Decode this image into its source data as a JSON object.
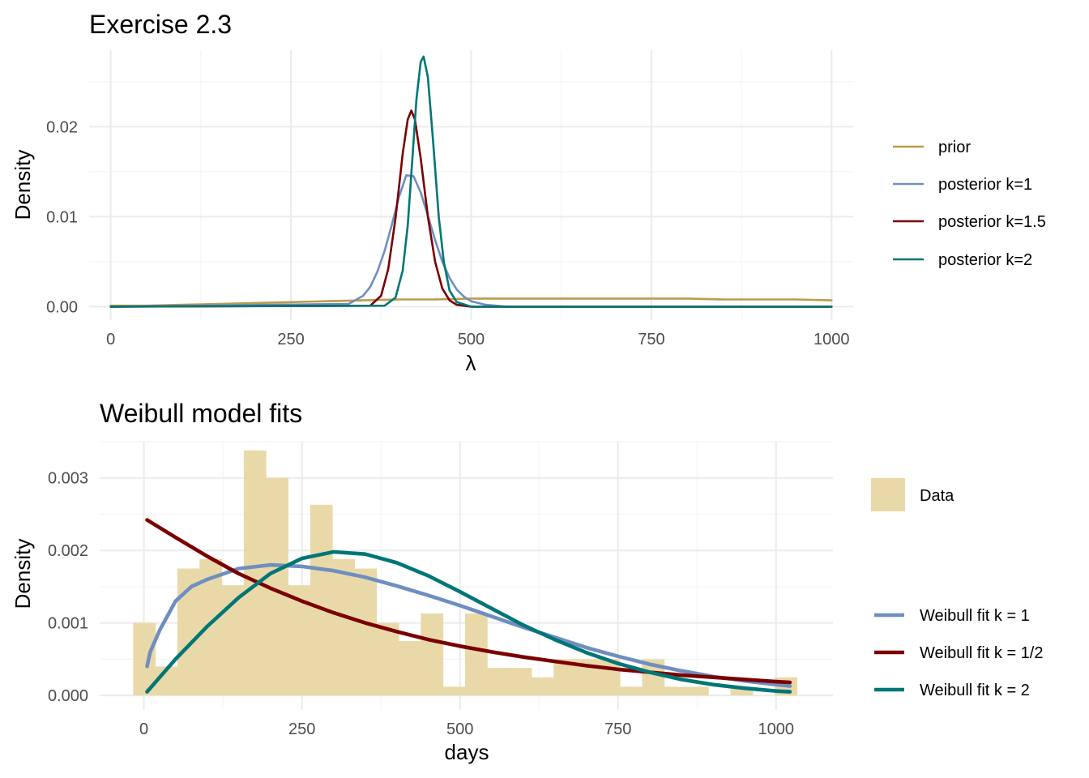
{
  "chart_data": [
    {
      "type": "line",
      "title": "Exercise 2.3",
      "xlabel": "λ",
      "ylabel": "Density",
      "xlim": [
        -30,
        1030
      ],
      "ylim": [
        -0.0015,
        0.0285
      ],
      "x_ticks": [
        0,
        250,
        500,
        750,
        1000
      ],
      "x_tick_labels": [
        "0",
        "250",
        "500",
        "750",
        "1000"
      ],
      "y_ticks": [
        0,
        0.01,
        0.02
      ],
      "y_tick_labels": [
        "0.00",
        "0.01",
        "0.02"
      ],
      "grid": true,
      "legend_position": "right",
      "series": [
        {
          "name": "prior",
          "color": "#BC9B4C",
          "x": [
            0,
            50,
            100,
            150,
            200,
            250,
            300,
            350,
            400,
            450,
            500,
            550,
            600,
            650,
            700,
            750,
            800,
            850,
            900,
            950,
            1000
          ],
          "y": [
            0.0001,
            0.0001,
            0.0002,
            0.0003,
            0.0004,
            0.0005,
            0.0006,
            0.0007,
            0.0008,
            0.0008,
            0.0009,
            0.0009,
            0.0009,
            0.0009,
            0.0009,
            0.0009,
            0.0009,
            0.0008,
            0.0008,
            0.0008,
            0.0007
          ]
        },
        {
          "name": "posterior k=1",
          "color": "#6F8EC0",
          "x": [
            0,
            330,
            350,
            360,
            370,
            380,
            390,
            400,
            410,
            420,
            430,
            440,
            450,
            460,
            470,
            480,
            490,
            500,
            520,
            550,
            1000
          ],
          "y": [
            0,
            0.0003,
            0.0012,
            0.0022,
            0.0039,
            0.0062,
            0.0091,
            0.0122,
            0.0146,
            0.0145,
            0.0127,
            0.0101,
            0.0074,
            0.005,
            0.0032,
            0.0019,
            0.0011,
            0.0006,
            0.0002,
            0,
            0
          ]
        },
        {
          "name": "posterior k=1.5",
          "color": "#7A0000",
          "x": [
            0,
            360,
            375,
            385,
            395,
            405,
            412,
            417,
            422,
            430,
            440,
            450,
            460,
            470,
            480,
            500,
            1000
          ],
          "y": [
            0,
            0.0001,
            0.0012,
            0.0042,
            0.0098,
            0.017,
            0.0208,
            0.0218,
            0.0208,
            0.0165,
            0.01,
            0.005,
            0.002,
            0.0007,
            0.0002,
            0,
            0
          ]
        },
        {
          "name": "posterior k=2",
          "color": "#007676",
          "x": [
            0,
            380,
            395,
            405,
            412,
            418,
            424,
            430,
            434,
            440,
            447,
            455,
            462,
            470,
            480,
            500,
            1000
          ],
          "y": [
            0,
            0.0001,
            0.001,
            0.004,
            0.009,
            0.016,
            0.023,
            0.0272,
            0.0278,
            0.0255,
            0.0185,
            0.01,
            0.005,
            0.0018,
            0.0005,
            0,
            0
          ]
        }
      ]
    },
    {
      "type": "bar",
      "title": "Weibull model fits",
      "xlabel": "days",
      "ylabel": "Density",
      "xlim": [
        -70,
        1090
      ],
      "ylim": [
        -0.0002,
        0.0035
      ],
      "x_ticks": [
        0,
        250,
        500,
        750,
        1000
      ],
      "x_tick_labels": [
        "0",
        "250",
        "500",
        "750",
        "1000"
      ],
      "y_ticks": [
        0,
        0.001,
        0.002,
        0.003
      ],
      "y_tick_labels": [
        "0.000",
        "0.001",
        "0.002",
        "0.003"
      ],
      "grid": true,
      "legend_position": "right",
      "histogram": {
        "name": "Data",
        "color": "#EAD9A8",
        "bin_width": 35,
        "bins_left": [
          -17,
          18,
          53,
          88,
          123,
          158,
          193,
          228,
          263,
          298,
          333,
          368,
          403,
          438,
          473,
          508,
          543,
          578,
          613,
          648,
          683,
          718,
          753,
          788,
          823,
          858,
          893,
          928,
          963,
          998
        ],
        "values": [
          0.001,
          0.0004,
          0.00175,
          0.00188,
          0.00152,
          0.00338,
          0.003,
          0.00152,
          0.00263,
          0.00188,
          0.00175,
          0.001,
          0.00075,
          0.00113,
          0.00012,
          0.00113,
          0.00038,
          0.00038,
          0.00025,
          0.0005,
          0.0005,
          0.0005,
          0.00012,
          0.0005,
          0.00012,
          0.00012,
          0,
          0.00012,
          0,
          0.00025
        ]
      },
      "series": [
        {
          "name": "Weibull fit k = 1",
          "color": "#6F8EC0",
          "x": [
            5,
            10,
            25,
            50,
            75,
            100,
            150,
            200,
            250,
            300,
            350,
            400,
            450,
            500,
            550,
            600,
            650,
            700,
            750,
            800,
            850,
            900,
            950,
            1000,
            1022
          ],
          "y": [
            0.0004,
            0.0006,
            0.0009,
            0.0013,
            0.0015,
            0.0016,
            0.00175,
            0.0018,
            0.00178,
            0.00172,
            0.00163,
            0.00151,
            0.00138,
            0.00124,
            0.00109,
            0.00094,
            0.0008,
            0.00066,
            0.00054,
            0.00043,
            0.00034,
            0.00026,
            0.0002,
            0.00015,
            0.00013
          ]
        },
        {
          "name": "Weibull fit k = 1/2",
          "color": "#7A0000",
          "x": [
            5,
            50,
            100,
            150,
            200,
            250,
            300,
            350,
            400,
            450,
            500,
            550,
            600,
            650,
            700,
            750,
            800,
            850,
            900,
            950,
            1000,
            1022
          ],
          "y": [
            0.00242,
            0.00218,
            0.00192,
            0.00168,
            0.00148,
            0.0013,
            0.00114,
            0.001,
            0.00088,
            0.00077,
            0.00068,
            0.0006,
            0.00053,
            0.00047,
            0.00041,
            0.00036,
            0.00032,
            0.00028,
            0.00025,
            0.00022,
            0.00019,
            0.00018
          ]
        },
        {
          "name": "Weibull fit k = 2",
          "color": "#007676",
          "x": [
            5,
            50,
            100,
            150,
            200,
            250,
            300,
            350,
            400,
            450,
            500,
            550,
            600,
            650,
            700,
            750,
            800,
            850,
            900,
            950,
            1000,
            1022
          ],
          "y": [
            5e-05,
            0.0005,
            0.00095,
            0.00135,
            0.00168,
            0.00189,
            0.00198,
            0.00195,
            0.00183,
            0.00165,
            0.00143,
            0.0012,
            0.00097,
            0.00077,
            0.00059,
            0.00044,
            0.00032,
            0.00022,
            0.00015,
            0.0001,
            6e-05,
            5e-05
          ]
        }
      ]
    }
  ]
}
